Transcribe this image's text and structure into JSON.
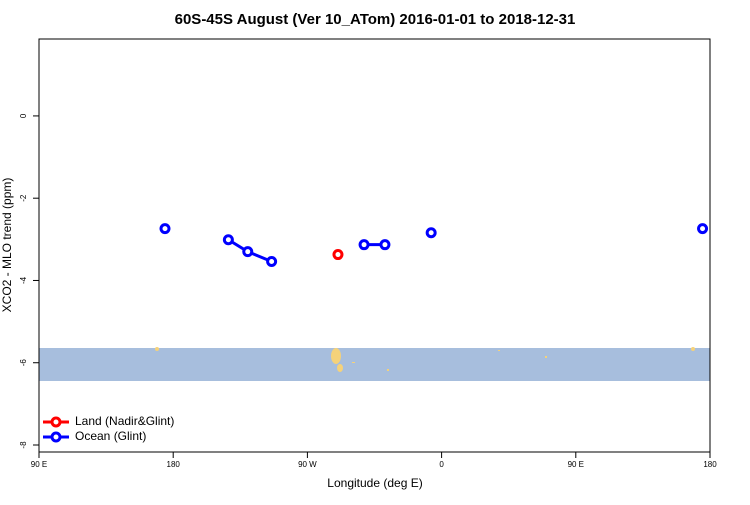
{
  "chart_data": {
    "type": "line",
    "title": "60S-45S August (Ver 10_ATom)   2016-01-01 to 2018-12-31",
    "x_label": "Longitude (deg E)",
    "y_label": "XCO2 - MLO trend (ppm)",
    "xlim": [
      90,
      540
    ],
    "xticks": [
      {
        "value": 90,
        "label": "90 E"
      },
      {
        "value": 180,
        "label": "180"
      },
      {
        "value": 270,
        "label": "90 W"
      },
      {
        "value": 360,
        "label": "0"
      },
      {
        "value": 450,
        "label": "90 E"
      },
      {
        "value": 540,
        "label": "180"
      }
    ],
    "ylim": [
      -8.17,
      1.87
    ],
    "yticks": [
      -8,
      -6,
      -4,
      -2,
      0
    ],
    "legend": "bottomleft",
    "series": [
      {
        "name": "Land (Nadir&Glint)",
        "color": "#ff0000",
        "x": [
          290.5
        ],
        "values": [
          -3.37
        ]
      },
      {
        "name": "Ocean (Glint)",
        "color": "#0000ff",
        "x": [
          174.5,
          null,
          217,
          230,
          246,
          null,
          308,
          322,
          null,
          353,
          null,
          535
        ],
        "values": [
          -2.74,
          null,
          -3.01,
          -3.3,
          -3.54,
          null,
          -3.13,
          -3.13,
          null,
          -2.84,
          null,
          -2.74
        ]
      }
    ]
  }
}
